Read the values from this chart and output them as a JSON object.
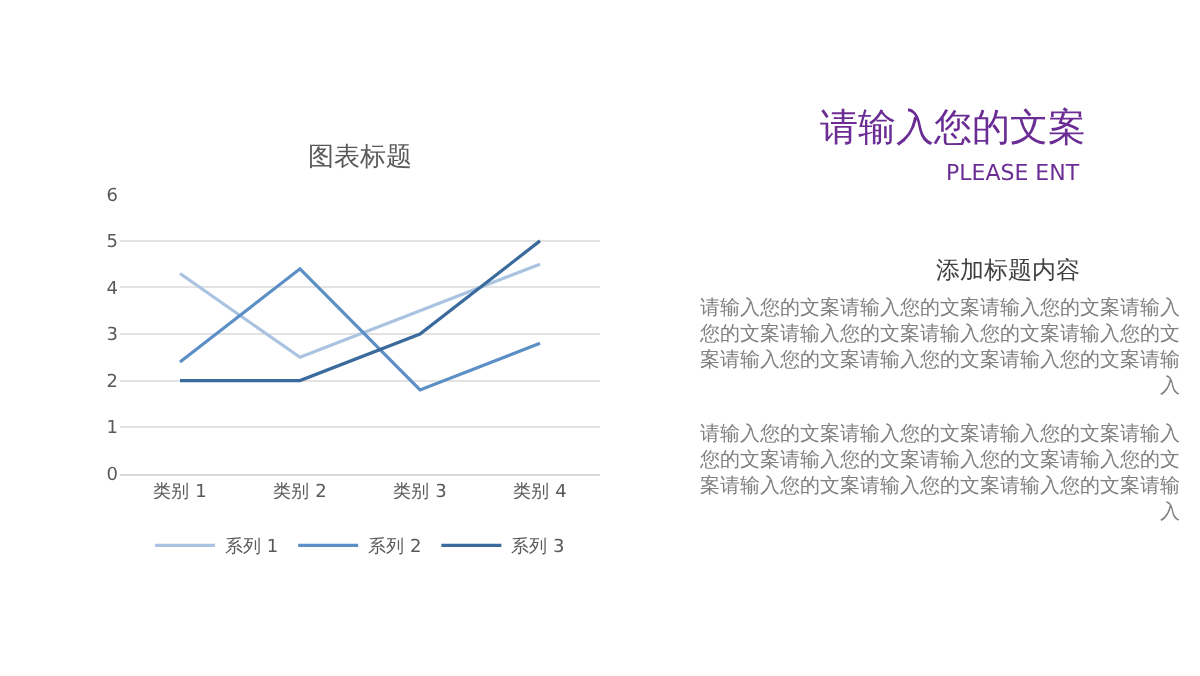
{
  "chart_data": {
    "type": "line",
    "title": "图表标题",
    "categories": [
      "类别 1",
      "类别 2",
      "类别 3",
      "类别 4"
    ],
    "series": [
      {
        "name": "系列 1",
        "color": "#a9c3e0",
        "values": [
          4.3,
          2.5,
          3.5,
          4.5
        ]
      },
      {
        "name": "系列 2",
        "color": "#5b8fc6",
        "values": [
          2.4,
          4.4,
          1.8,
          2.8
        ]
      },
      {
        "name": "系列 3",
        "color": "#3b6a9d",
        "values": [
          2,
          2,
          3,
          5
        ]
      }
    ],
    "ylim": [
      0,
      6
    ],
    "yticks": [
      0,
      1,
      2,
      3,
      4,
      5,
      6
    ],
    "grid": "y",
    "legend": "bottom",
    "marker": "none",
    "line_style": "solid",
    "annotations": [
      "请输入您的文案",
      "PLEASE ENT",
      "添加标题内容",
      "请输入您的文案请输入您的文案请输入您的文案请输入您的文案请输入您的文案请输入您的文案请输入您的文案请输入您的文案请输入您的文案请输入您的文案请输入",
      "请输入您的文案请输入您的文案请输入您的文案请输入您的文案请输入您的文案请输入您的文案请输入您的文案请输入您的文案请输入您的文案请输入您的文案请输入"
    ]
  }
}
